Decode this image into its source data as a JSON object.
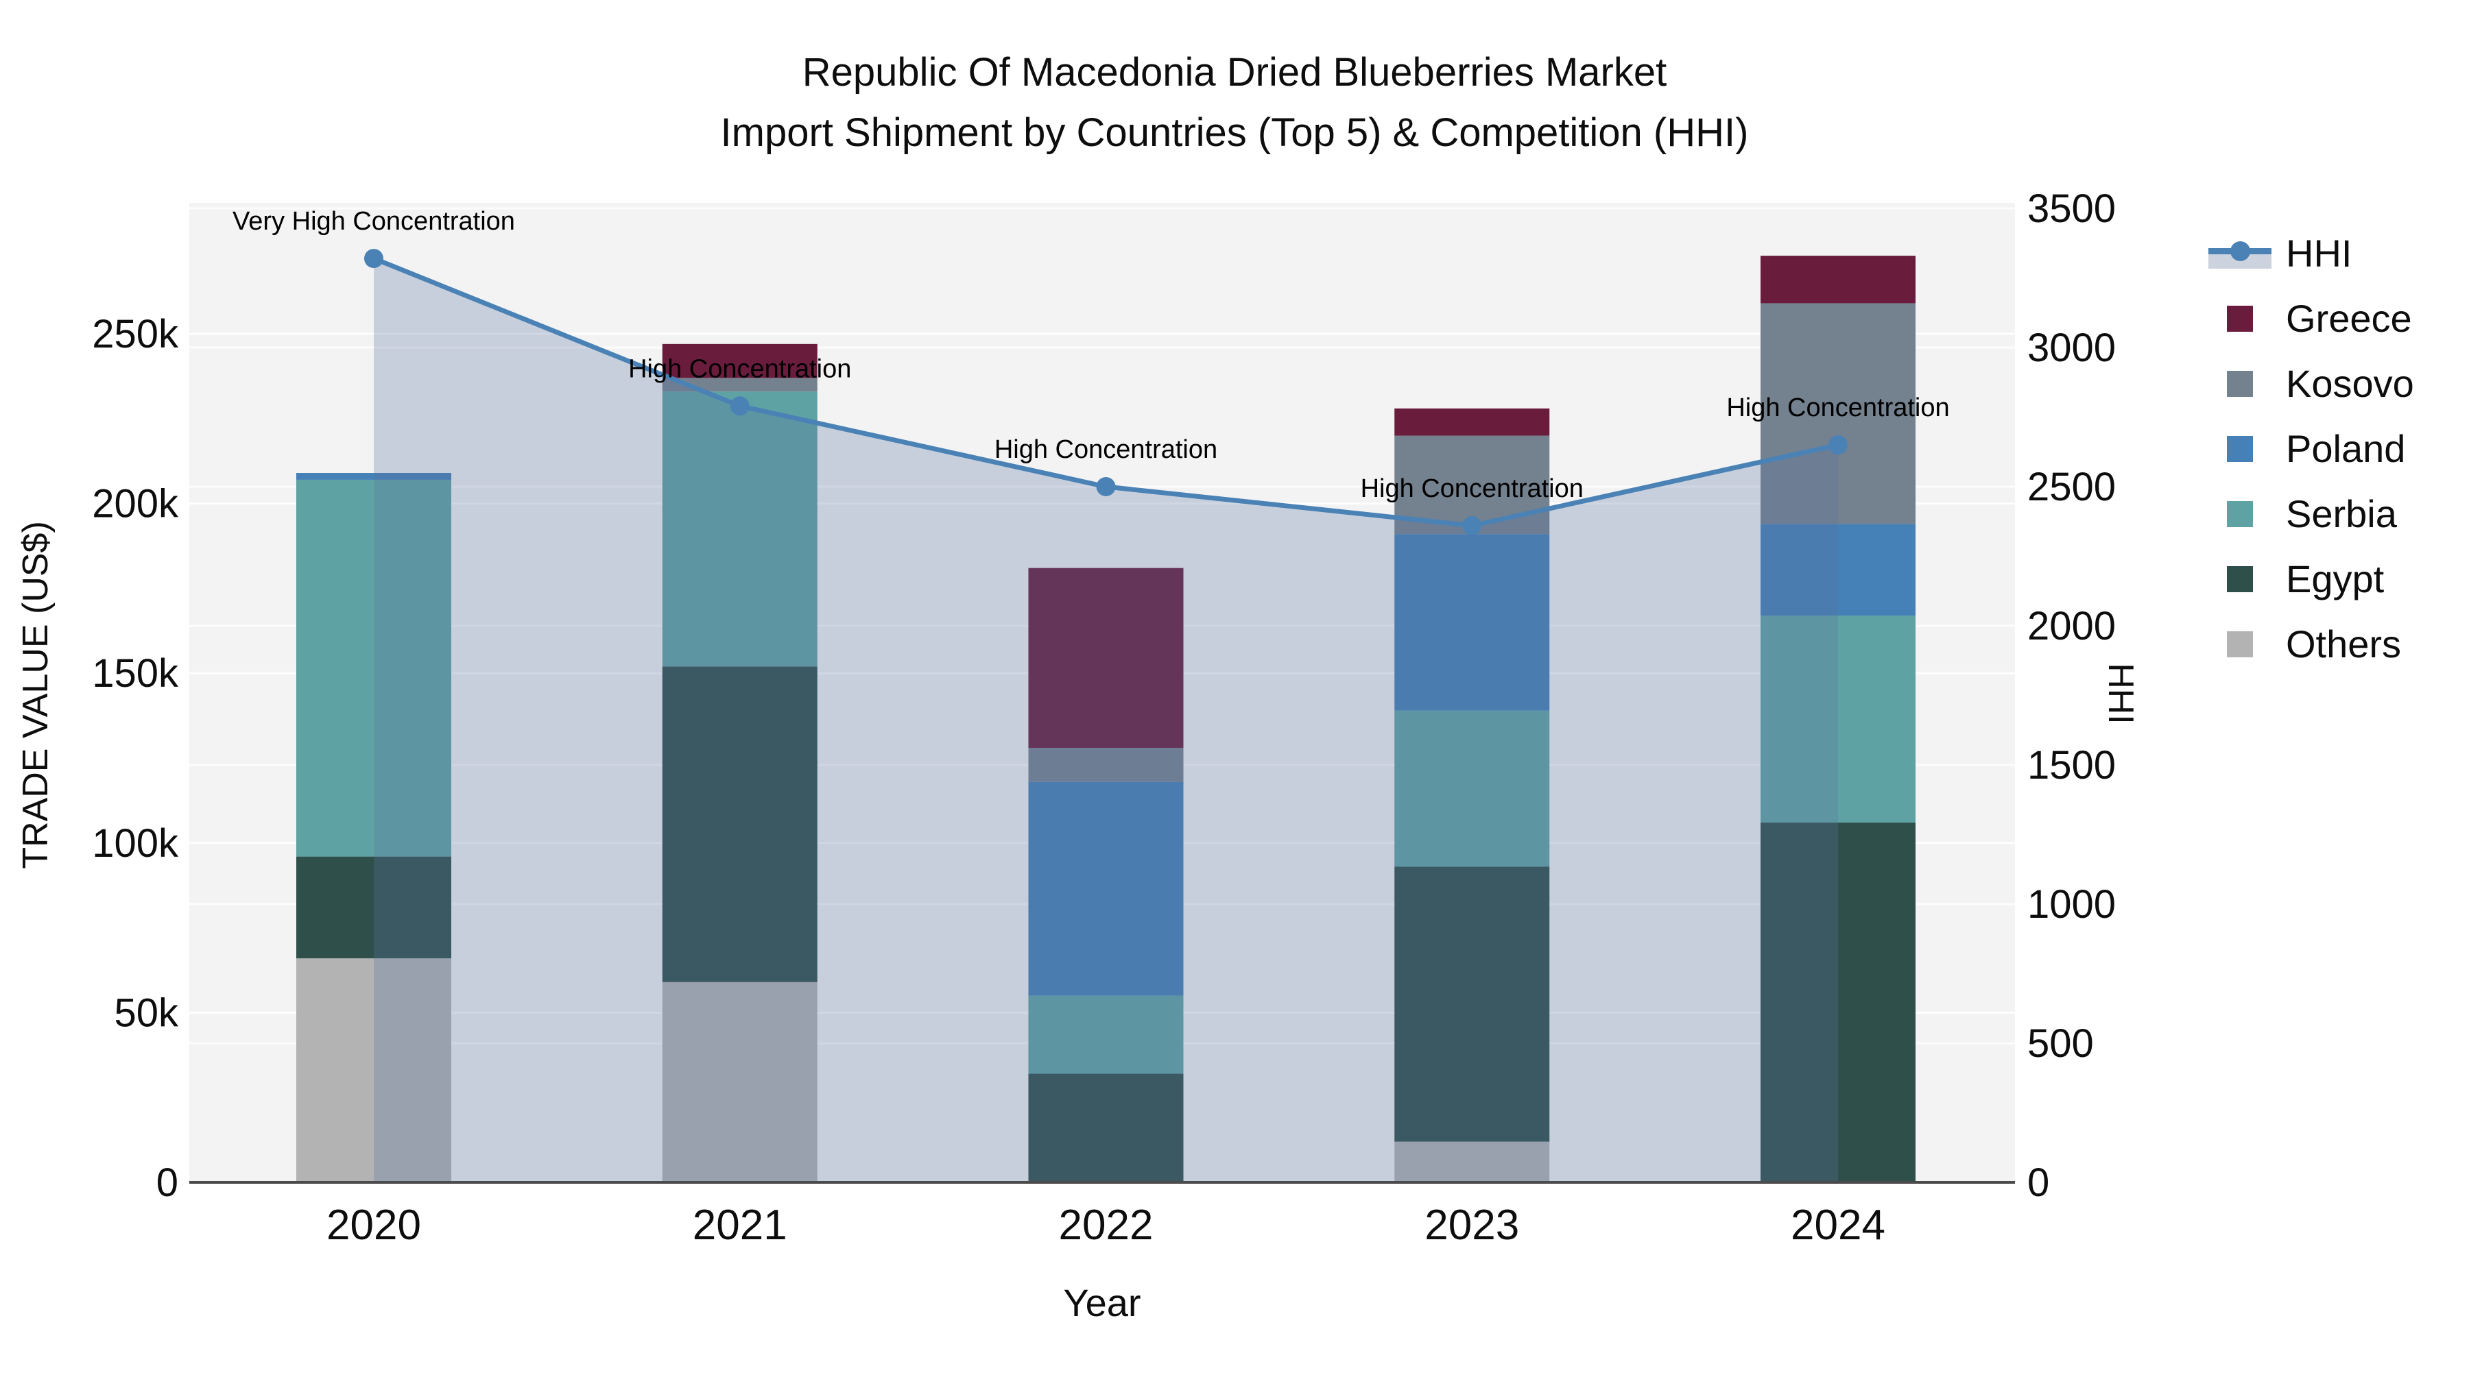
{
  "title": {
    "line1": "Republic Of Macedonia Dried Blueberries Market",
    "line2": "Import Shipment by Countries (Top 5) & Competition (HHI)"
  },
  "axes": {
    "x_title": "Year",
    "y_left_title": "TRADE VALUE (US$)",
    "y_right_title": "HHI",
    "y_left_ticks": [
      {
        "label": "0",
        "value": 0
      },
      {
        "label": "50k",
        "value": 50000
      },
      {
        "label": "100k",
        "value": 100000
      },
      {
        "label": "150k",
        "value": 150000
      },
      {
        "label": "200k",
        "value": 200000
      },
      {
        "label": "250k",
        "value": 250000
      }
    ],
    "y_right_ticks": [
      {
        "label": "0",
        "value": 0
      },
      {
        "label": "500",
        "value": 500
      },
      {
        "label": "1000",
        "value": 1000
      },
      {
        "label": "1500",
        "value": 1500
      },
      {
        "label": "2000",
        "value": 2000
      },
      {
        "label": "2500",
        "value": 2500
      },
      {
        "label": "3000",
        "value": 3000
      },
      {
        "label": "3500",
        "value": 3500
      }
    ]
  },
  "legend": {
    "items": [
      {
        "label": "HHI",
        "type": "line",
        "color": "#4a82b6",
        "band": "#ccd3de"
      },
      {
        "label": "Greece",
        "type": "square",
        "color": "#6a1c3d"
      },
      {
        "label": "Kosovo",
        "type": "square",
        "color": "#74818f"
      },
      {
        "label": "Poland",
        "type": "square",
        "color": "#4580b6"
      },
      {
        "label": "Serbia",
        "type": "square",
        "color": "#5fa2a4"
      },
      {
        "label": "Egypt",
        "type": "square",
        "color": "#2f4f4b"
      },
      {
        "label": "Others",
        "type": "square",
        "color": "#b3b3b3"
      }
    ]
  },
  "chart_data": {
    "type": "combo-stacked-bar-line",
    "categories": [
      "2020",
      "2021",
      "2022",
      "2023",
      "2024"
    ],
    "bar_unit": "US$",
    "series": [
      {
        "name": "Others",
        "color": "#b3b3b3",
        "values": [
          66000,
          59000,
          0,
          12000,
          0
        ]
      },
      {
        "name": "Egypt",
        "color": "#2f4f4b",
        "values": [
          30000,
          93000,
          32000,
          81000,
          106000
        ]
      },
      {
        "name": "Serbia",
        "color": "#5fa2a4",
        "values": [
          111000,
          81000,
          23000,
          46000,
          61000
        ]
      },
      {
        "name": "Poland",
        "color": "#4580b6",
        "values": [
          2000,
          0,
          63000,
          52000,
          27000
        ]
      },
      {
        "name": "Kosovo",
        "color": "#74818f",
        "values": [
          0,
          4000,
          10000,
          29000,
          65000
        ]
      },
      {
        "name": "Greece",
        "color": "#6a1c3d",
        "values": [
          0,
          10000,
          53000,
          8000,
          14000
        ]
      }
    ],
    "line_series": {
      "name": "HHI",
      "color": "#4a82b6",
      "fill": "rgba(90,115,160,0.28)",
      "values": [
        3320,
        2790,
        2500,
        2360,
        2650
      ]
    },
    "annotations": [
      "Very High Concentration",
      "High Concentration",
      "High Concentration",
      "High Concentration",
      "High Concentration"
    ],
    "y_left_axis": {
      "min": 0,
      "tick_step": 50000,
      "max_ticks_label": "250k"
    },
    "y_right_axis": {
      "min": 0,
      "tick_step": 500,
      "max_ticks_label": "3500"
    },
    "grid": true,
    "legend_position": "right"
  }
}
